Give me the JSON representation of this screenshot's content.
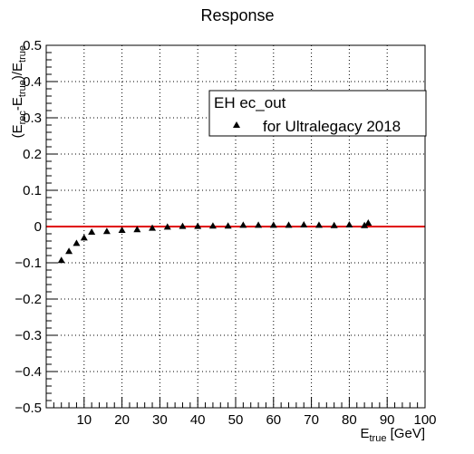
{
  "chart_data": {
    "type": "scatter",
    "title": "Response",
    "xlabel_main": "E",
    "xlabel_sub": "true",
    "xlabel_unit": " [GeV]",
    "ylabel_parts": [
      "(E",
      "rec",
      "-E",
      "true",
      ")/E",
      "true"
    ],
    "xlim": [
      0,
      100
    ],
    "ylim": [
      -0.5,
      0.5
    ],
    "grid": true,
    "x_ticks": [
      10,
      20,
      30,
      40,
      50,
      60,
      70,
      80,
      90,
      100
    ],
    "x_tick_labels": [
      "10",
      "20",
      "30",
      "40",
      "50",
      "60",
      "70",
      "80",
      "90",
      "100"
    ],
    "y_ticks": [
      -0.5,
      -0.4,
      -0.3,
      -0.2,
      -0.1,
      0,
      0.1,
      0.2,
      0.3,
      0.4,
      0.5
    ],
    "y_tick_labels": [
      "−0.5",
      "−0.4",
      "−0.3",
      "−0.2",
      "−0.1",
      "0",
      "0.1",
      "0.2",
      "0.3",
      "0.4",
      "0.5"
    ],
    "reference_line": {
      "y": 0,
      "color": "#e00000"
    },
    "legend": {
      "header": "EH ec_out",
      "entries": [
        {
          "label": "for Ultralegacy 2018",
          "marker": "triangle"
        }
      ],
      "position": "top-right"
    },
    "series": [
      {
        "name": "for Ultralegacy 2018",
        "color": "#000000",
        "marker": "triangle",
        "x": [
          4,
          6,
          8,
          10,
          12,
          16,
          20,
          24,
          28,
          32,
          36,
          40,
          44,
          48,
          52,
          56,
          60,
          64,
          68,
          72,
          76,
          80,
          84,
          85
        ],
        "y": [
          -0.093,
          -0.068,
          -0.046,
          -0.031,
          -0.015,
          -0.013,
          -0.01,
          -0.008,
          -0.004,
          -0.001,
          0.001,
          0.001,
          0.002,
          0.002,
          0.004,
          0.004,
          0.004,
          0.004,
          0.005,
          0.004,
          0.003,
          0.005,
          0.003,
          0.01
        ]
      }
    ]
  }
}
